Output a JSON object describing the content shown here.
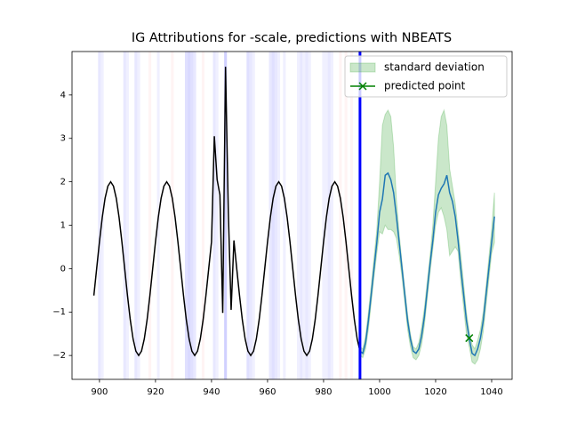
{
  "chart_data": {
    "type": "line",
    "title": "IG Attributions for -scale, predictions with NBEATS",
    "xlim": [
      890.2,
      1047.3
    ],
    "ylim": [
      -2.55,
      5.0
    ],
    "xticks": [
      900,
      920,
      940,
      960,
      980,
      1000,
      1020,
      1040
    ],
    "yticks": [
      {
        "value": -2,
        "label": "−2"
      },
      {
        "value": -1,
        "label": "−1"
      },
      0,
      1,
      2,
      3,
      4
    ],
    "legend": "upper right",
    "attributions": {
      "x": [
        900,
        901,
        909,
        910,
        913,
        914,
        921,
        931,
        932,
        933,
        934,
        941,
        942,
        945,
        953,
        954,
        955,
        961,
        962,
        963,
        964,
        966,
        971,
        972,
        973,
        974,
        975,
        980,
        981,
        982,
        983,
        918,
        926,
        937,
        986,
        988,
        990
      ],
      "values": [
        -0.3,
        -0.2,
        -0.3,
        -0.2,
        -0.3,
        -0.2,
        -0.2,
        -0.4,
        -0.5,
        -0.4,
        -0.3,
        -0.3,
        -0.2,
        -0.6,
        -0.4,
        -0.3,
        -0.2,
        -0.3,
        -0.4,
        -0.3,
        -0.2,
        -0.2,
        -0.2,
        -0.3,
        -0.2,
        -0.3,
        -0.2,
        -0.2,
        -0.2,
        -0.3,
        -0.2,
        0.15,
        0.15,
        0.15,
        0.15,
        0.15,
        0.15
      ],
      "positive_color": "#ff0000",
      "negative_color": "#0000ff"
    },
    "vline": {
      "x": 993,
      "color": "#0000ff"
    },
    "series": [
      {
        "color": "#000000",
        "x": [
          898,
          899,
          900,
          901,
          902,
          903,
          904,
          905,
          906,
          907,
          908,
          909,
          910,
          911,
          912,
          913,
          914,
          915,
          916,
          917,
          918,
          919,
          920,
          921,
          922,
          923,
          924,
          925,
          926,
          927,
          928,
          929,
          930,
          931,
          932,
          933,
          934,
          935,
          936,
          937,
          938,
          939,
          940,
          941,
          942,
          943,
          944,
          945,
          946,
          947,
          948,
          949,
          950,
          951,
          952,
          953,
          954,
          955,
          956,
          957,
          958,
          959,
          960,
          961,
          962,
          963,
          964,
          965,
          966,
          967,
          968,
          969,
          970,
          971,
          972,
          973,
          974,
          975,
          976,
          977,
          978,
          979,
          980,
          981,
          982,
          983,
          984,
          985,
          986,
          987,
          988,
          989,
          990,
          991,
          992,
          993
        ],
        "values": [
          -0.62,
          0,
          0.62,
          1.18,
          1.62,
          1.9,
          2.0,
          1.9,
          1.62,
          1.18,
          0.62,
          0,
          -0.62,
          -1.18,
          -1.62,
          -1.9,
          -2.0,
          -1.9,
          -1.62,
          -1.18,
          -0.62,
          0,
          0.62,
          1.18,
          1.62,
          1.9,
          2.0,
          1.9,
          1.62,
          1.18,
          0.62,
          0,
          -0.62,
          -1.18,
          -1.62,
          -1.9,
          -2.0,
          -1.9,
          -1.62,
          -1.18,
          -0.62,
          0,
          0.62,
          3.05,
          2.05,
          1.7,
          -1.02,
          4.65,
          1.3,
          -0.95,
          0.65,
          0,
          -0.62,
          -1.18,
          -1.62,
          -1.9,
          -2.0,
          -1.9,
          -1.62,
          -1.18,
          -0.62,
          0,
          0.62,
          1.18,
          1.62,
          1.9,
          2.0,
          1.9,
          1.62,
          1.18,
          0.62,
          0,
          -0.62,
          -1.18,
          -1.62,
          -1.9,
          -2.0,
          -1.9,
          -1.62,
          -1.18,
          -0.62,
          0,
          0.62,
          1.18,
          1.62,
          1.9,
          2.0,
          1.9,
          1.62,
          1.18,
          0.62,
          0,
          -0.62,
          -1.18,
          -1.62,
          -1.9
        ]
      },
      {
        "color": "#1f77b4",
        "x": [
          993,
          994,
          995,
          996,
          997,
          998,
          999,
          1000,
          1001,
          1002,
          1003,
          1004,
          1005,
          1006,
          1007,
          1008,
          1009,
          1010,
          1011,
          1012,
          1013,
          1014,
          1015,
          1016,
          1017,
          1018,
          1019,
          1020,
          1021,
          1022,
          1023,
          1024,
          1025,
          1026,
          1027,
          1028,
          1029,
          1030,
          1031,
          1032,
          1033,
          1034,
          1035,
          1036,
          1037,
          1038,
          1039,
          1040,
          1041
        ],
        "values": [
          -1.9,
          -1.95,
          -1.7,
          -1.2,
          -0.6,
          0,
          0.6,
          1.3,
          1.6,
          2.15,
          2.2,
          2.05,
          1.75,
          1.2,
          0.6,
          0,
          -0.6,
          -1.2,
          -1.62,
          -1.9,
          -1.95,
          -1.85,
          -1.55,
          -1.1,
          -0.5,
          0.1,
          0.65,
          1.3,
          1.7,
          1.85,
          1.95,
          2.15,
          1.75,
          1.55,
          1.2,
          0.65,
          0,
          -0.6,
          -1.2,
          -1.6,
          -1.95,
          -2.0,
          -1.85,
          -1.6,
          -1.2,
          -0.6,
          0,
          0.6,
          1.2
        ]
      }
    ],
    "band": {
      "name": "standard deviation",
      "color": "#2ca02c",
      "x": [
        993,
        994,
        995,
        996,
        997,
        998,
        999,
        1000,
        1001,
        1002,
        1003,
        1004,
        1005,
        1006,
        1007,
        1008,
        1009,
        1010,
        1011,
        1012,
        1013,
        1014,
        1015,
        1016,
        1017,
        1018,
        1019,
        1020,
        1021,
        1022,
        1023,
        1024,
        1025,
        1026,
        1027,
        1028,
        1029,
        1030,
        1031,
        1032,
        1033,
        1034,
        1035,
        1036,
        1037,
        1038,
        1039,
        1040,
        1041
      ],
      "upper": [
        -1.8,
        -1.85,
        -1.55,
        -1.0,
        -0.4,
        0.25,
        0.9,
        2.0,
        3.3,
        3.55,
        3.65,
        3.5,
        2.8,
        1.6,
        0.8,
        0.15,
        -0.45,
        -1.05,
        -1.5,
        -1.8,
        -1.85,
        -1.7,
        -1.35,
        -0.9,
        -0.3,
        0.3,
        1.0,
        2.0,
        3.0,
        3.5,
        3.65,
        3.3,
        2.3,
        1.9,
        1.5,
        0.9,
        0.3,
        -0.35,
        -1.0,
        -1.45,
        -1.75,
        -1.85,
        -1.65,
        -1.4,
        -1.0,
        -0.4,
        0.25,
        0.9,
        1.75
      ],
      "lower": [
        -2.0,
        -2.05,
        -1.85,
        -1.4,
        -0.8,
        -0.2,
        0.35,
        0.85,
        0.8,
        1.0,
        0.9,
        0.9,
        0.85,
        0.7,
        0.3,
        -0.2,
        -0.8,
        -1.4,
        -1.8,
        -2.05,
        -2.1,
        -2.0,
        -1.75,
        -1.3,
        -0.7,
        -0.1,
        0.45,
        1.0,
        1.3,
        1.4,
        1.2,
        0.9,
        0.3,
        0.4,
        0.5,
        0.4,
        -0.3,
        -0.9,
        -1.5,
        -1.8,
        -2.15,
        -2.2,
        -2.1,
        -1.85,
        -1.45,
        -0.85,
        -0.25,
        0.35,
        0.6
      ]
    },
    "point": {
      "name": "predicted point",
      "color": "#008000",
      "x": [
        1032
      ],
      "values": [
        -1.6
      ]
    }
  }
}
